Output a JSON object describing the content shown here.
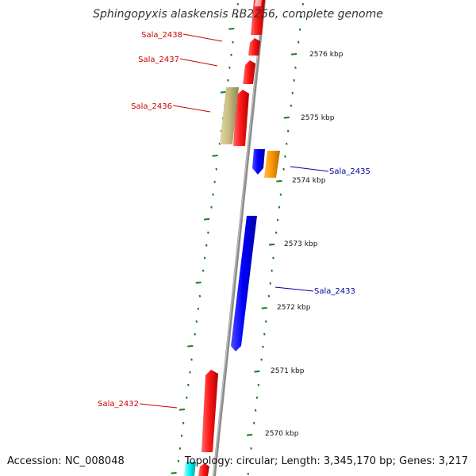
{
  "title": "Sphingopyxis alaskensis RB2256, complete genome",
  "accession": "Accession: NC_008048",
  "summary": "Topology: circular; Length: 3,345,170 bp; Genes: 3,217",
  "colors": {
    "backbone": "#8c8c8c",
    "tick": "#1a7a1a",
    "forward_label": "#cc0000",
    "reverse_label": "#000099"
  },
  "kbp_labels": [
    "2576 kbp",
    "2575 kbp",
    "2574 kbp",
    "2573 kbp",
    "2572 kbp",
    "2571 kbp",
    "2570 kbp"
  ],
  "gene_labels": {
    "sala_2438": "Sala_2438",
    "sala_2437": "Sala_2437",
    "sala_2436": "Sala_2436",
    "sala_2435": "Sala_2435",
    "sala_2433": "Sala_2433",
    "sala_2432": "Sala_2432"
  }
}
